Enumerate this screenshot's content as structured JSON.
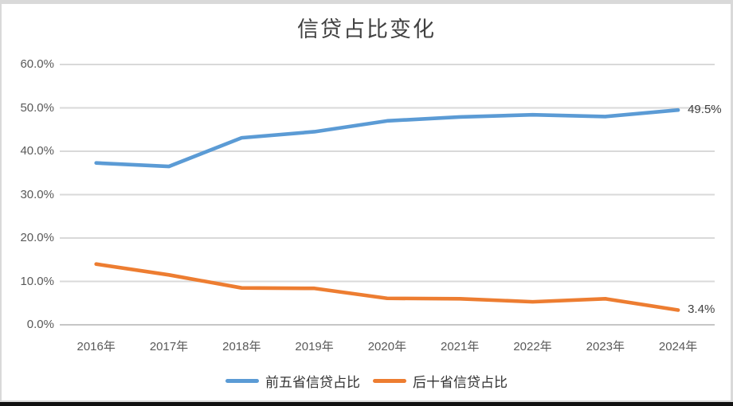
{
  "chart_data": {
    "type": "line",
    "title": "信贷占比变化",
    "categories": [
      "2016年",
      "2017年",
      "2018年",
      "2019年",
      "2020年",
      "2021年",
      "2022年",
      "2023年",
      "2024年"
    ],
    "series": [
      {
        "name": "前五省信贷占比",
        "color": "#5B9BD5",
        "values": [
          37.3,
          36.5,
          43.1,
          44.5,
          47.0,
          47.9,
          48.4,
          48.0,
          49.5
        ],
        "end_label": "49.5%"
      },
      {
        "name": "后十省信贷占比",
        "color": "#ED7D31",
        "values": [
          14.0,
          11.5,
          8.5,
          8.4,
          6.1,
          6.0,
          5.3,
          6.0,
          3.4
        ],
        "end_label": "3.4%"
      }
    ],
    "y_ticks": [
      "0.0%",
      "10.0%",
      "20.0%",
      "30.0%",
      "40.0%",
      "50.0%",
      "60.0%"
    ],
    "y_tick_values": [
      0,
      10,
      20,
      30,
      40,
      50,
      60
    ],
    "ylim": [
      0,
      60
    ],
    "grid": true,
    "legend_position": "bottom",
    "gridline_color": "#d9d9d9",
    "zero_line_color": "#c6c6c6",
    "axis_label_color": "#595959",
    "data_label_color": "#404040"
  }
}
